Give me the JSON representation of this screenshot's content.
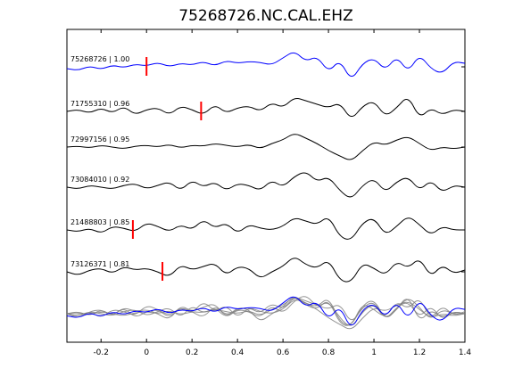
{
  "chart_data": {
    "type": "line",
    "title": "75268726.NC.CAL.EHZ",
    "xlabel": "",
    "ylabel": "",
    "xlim": [
      -0.35,
      1.4
    ],
    "xticks": [
      -0.2,
      0,
      0.2,
      0.4,
      0.6,
      0.8,
      1,
      1.2,
      1.4
    ],
    "xtick_labels": [
      "-0.2",
      "0",
      "0.2",
      "0.4",
      "0.6",
      "0.8",
      "1",
      "1.2",
      "1.4"
    ],
    "grid": false,
    "series": [
      {
        "name": "75268726 | 1.00",
        "color": "#0000ff",
        "pick": 0.0,
        "x": [
          -0.35,
          -0.3,
          -0.25,
          -0.2,
          -0.15,
          -0.1,
          -0.05,
          0.0,
          0.05,
          0.1,
          0.15,
          0.2,
          0.25,
          0.3,
          0.35,
          0.4,
          0.45,
          0.5,
          0.55,
          0.6,
          0.65,
          0.7,
          0.75,
          0.8,
          0.85,
          0.9,
          0.95,
          1.0,
          1.05,
          1.1,
          1.15,
          1.2,
          1.25,
          1.3,
          1.35,
          1.4
        ],
        "y": [
          -0.1,
          -0.2,
          0.05,
          -0.15,
          0.1,
          -0.05,
          0.15,
          0.05,
          0.25,
          0.0,
          0.2,
          0.1,
          0.3,
          0.05,
          0.35,
          0.2,
          0.3,
          0.25,
          0.1,
          0.5,
          0.9,
          0.3,
          0.6,
          -0.3,
          0.4,
          -0.8,
          0.2,
          0.5,
          -0.2,
          0.6,
          -0.3,
          0.7,
          -0.1,
          -0.4,
          0.3,
          0.2
        ]
      },
      {
        "name": "71755310 | 0.96",
        "color": "#000000",
        "pick": 0.24,
        "x": [
          -0.35,
          -0.3,
          -0.25,
          -0.2,
          -0.15,
          -0.1,
          -0.05,
          0.0,
          0.05,
          0.1,
          0.15,
          0.2,
          0.25,
          0.3,
          0.35,
          0.4,
          0.45,
          0.5,
          0.55,
          0.6,
          0.65,
          0.7,
          0.75,
          0.8,
          0.85,
          0.9,
          0.95,
          1.0,
          1.05,
          1.1,
          1.15,
          1.2,
          1.25,
          1.3,
          1.35,
          1.4
        ],
        "y": [
          0.0,
          0.1,
          -0.1,
          0.2,
          -0.1,
          0.3,
          -0.2,
          0.1,
          0.2,
          -0.2,
          0.3,
          0.1,
          -0.2,
          0.4,
          -0.1,
          0.2,
          0.3,
          0.0,
          0.5,
          0.2,
          0.8,
          0.6,
          0.4,
          0.2,
          0.5,
          -0.5,
          0.3,
          0.6,
          -0.3,
          0.2,
          0.9,
          -0.4,
          0.2,
          -0.2,
          0.1,
          0.0
        ]
      },
      {
        "name": "72997156 | 0.95",
        "color": "#000000",
        "pick": null,
        "x": [
          -0.35,
          -0.3,
          -0.25,
          -0.2,
          -0.15,
          -0.1,
          -0.05,
          0.0,
          0.05,
          0.1,
          0.15,
          0.2,
          0.25,
          0.3,
          0.35,
          0.4,
          0.45,
          0.5,
          0.55,
          0.6,
          0.65,
          0.7,
          0.75,
          0.8,
          0.85,
          0.9,
          0.95,
          1.0,
          1.05,
          1.1,
          1.15,
          1.2,
          1.25,
          1.3,
          1.35,
          1.4
        ],
        "y": [
          0.0,
          0.05,
          -0.05,
          0.1,
          0.0,
          -0.1,
          0.05,
          0.1,
          0.0,
          0.15,
          -0.05,
          0.1,
          0.05,
          0.2,
          0.1,
          0.0,
          0.15,
          -0.1,
          0.2,
          0.4,
          0.8,
          0.5,
          0.2,
          -0.2,
          -0.5,
          -0.8,
          -0.2,
          0.3,
          0.1,
          0.4,
          0.6,
          0.2,
          -0.2,
          0.0,
          -0.1,
          0.0
        ]
      },
      {
        "name": "73084010 | 0.92",
        "color": "#000000",
        "pick": null,
        "x": [
          -0.35,
          -0.3,
          -0.25,
          -0.2,
          -0.15,
          -0.1,
          -0.05,
          0.0,
          0.05,
          0.1,
          0.15,
          0.2,
          0.25,
          0.3,
          0.35,
          0.4,
          0.45,
          0.5,
          0.55,
          0.6,
          0.65,
          0.7,
          0.75,
          0.8,
          0.85,
          0.9,
          0.95,
          1.0,
          1.05,
          1.1,
          1.15,
          1.2,
          1.25,
          1.3,
          1.35,
          1.4
        ],
        "y": [
          0.0,
          -0.1,
          0.1,
          0.0,
          -0.1,
          0.1,
          0.2,
          -0.1,
          0.1,
          0.3,
          -0.2,
          0.4,
          0.0,
          0.3,
          -0.2,
          0.2,
          0.1,
          -0.2,
          0.4,
          0.0,
          0.6,
          0.9,
          0.3,
          0.6,
          -0.2,
          -0.7,
          0.1,
          0.5,
          -0.3,
          0.3,
          0.6,
          -0.2,
          0.4,
          -0.3,
          0.1,
          0.0
        ]
      },
      {
        "name": "21488803 | 0.85",
        "color": "#000000",
        "pick": -0.06,
        "x": [
          -0.35,
          -0.3,
          -0.25,
          -0.2,
          -0.15,
          -0.1,
          -0.05,
          0.0,
          0.05,
          0.1,
          0.15,
          0.2,
          0.25,
          0.3,
          0.35,
          0.4,
          0.45,
          0.5,
          0.55,
          0.6,
          0.65,
          0.7,
          0.75,
          0.8,
          0.85,
          0.9,
          0.95,
          1.0,
          1.05,
          1.1,
          1.15,
          1.2,
          1.25,
          1.3,
          1.35,
          1.4
        ],
        "y": [
          0.0,
          -0.1,
          0.1,
          -0.2,
          0.2,
          0.1,
          -0.1,
          0.4,
          0.2,
          -0.1,
          0.3,
          0.0,
          0.6,
          0.1,
          0.4,
          -0.2,
          0.3,
          0.1,
          0.0,
          0.2,
          0.7,
          0.5,
          0.3,
          0.8,
          -0.4,
          -0.6,
          0.4,
          0.7,
          -0.3,
          0.2,
          0.8,
          0.3,
          -0.3,
          0.2,
          0.0,
          0.0
        ]
      },
      {
        "name": "73126371 | 0.81",
        "color": "#000000",
        "pick": 0.07,
        "x": [
          -0.35,
          -0.3,
          -0.25,
          -0.2,
          -0.15,
          -0.1,
          -0.05,
          0.0,
          0.05,
          0.1,
          0.15,
          0.2,
          0.25,
          0.3,
          0.35,
          0.4,
          0.45,
          0.5,
          0.55,
          0.6,
          0.65,
          0.7,
          0.75,
          0.8,
          0.85,
          0.9,
          0.95,
          1.0,
          1.05,
          1.1,
          1.15,
          1.2,
          1.25,
          1.3,
          1.35,
          1.4
        ],
        "y": [
          0.0,
          -0.2,
          0.1,
          0.2,
          -0.1,
          0.3,
          0.1,
          0.2,
          0.0,
          -0.3,
          0.4,
          0.1,
          0.3,
          0.5,
          -0.2,
          0.3,
          0.2,
          -0.4,
          0.0,
          0.3,
          0.9,
          0.4,
          0.2,
          0.7,
          -0.5,
          -0.6,
          0.5,
          0.2,
          -0.2,
          0.6,
          0.2,
          0.8,
          -0.3,
          0.4,
          -0.1,
          0.1
        ]
      }
    ],
    "stack_series": [
      {
        "name": "",
        "color": "#0000ff",
        "y": [
          -0.1,
          -0.2,
          0.05,
          -0.15,
          0.1,
          -0.05,
          0.15,
          0.05,
          0.25,
          0.0,
          0.2,
          0.1,
          0.3,
          0.05,
          0.35,
          0.2,
          0.3,
          0.25,
          0.1,
          0.5,
          0.9,
          0.3,
          0.6,
          -0.3,
          0.4,
          -0.8,
          0.2,
          0.5,
          -0.2,
          0.6,
          -0.3,
          0.7,
          -0.1,
          -0.4,
          0.3,
          0.2
        ]
      },
      {
        "name": "",
        "color": "#808080",
        "y": [
          0.0,
          0.1,
          -0.1,
          0.2,
          -0.1,
          0.3,
          -0.2,
          0.1,
          0.2,
          -0.2,
          0.3,
          0.1,
          -0.2,
          0.4,
          -0.1,
          0.2,
          0.3,
          0.0,
          0.5,
          0.2,
          0.8,
          0.6,
          0.4,
          0.2,
          0.5,
          -0.5,
          0.3,
          0.6,
          -0.3,
          0.2,
          0.9,
          -0.4,
          0.2,
          -0.2,
          0.1,
          0.0
        ]
      },
      {
        "name": "",
        "color": "#808080",
        "y": [
          0.0,
          0.05,
          -0.05,
          0.1,
          0.0,
          -0.1,
          0.05,
          0.1,
          0.0,
          0.15,
          -0.05,
          0.1,
          0.05,
          0.2,
          0.1,
          0.0,
          0.15,
          -0.1,
          0.2,
          0.4,
          0.8,
          0.5,
          0.2,
          -0.2,
          -0.5,
          -0.8,
          -0.2,
          0.3,
          0.1,
          0.4,
          0.6,
          0.2,
          -0.2,
          0.0,
          -0.1,
          0.0
        ]
      },
      {
        "name": "",
        "color": "#808080",
        "y": [
          0.0,
          -0.1,
          0.1,
          0.0,
          -0.1,
          0.1,
          0.2,
          -0.1,
          0.1,
          0.3,
          -0.2,
          0.4,
          0.0,
          0.3,
          -0.2,
          0.2,
          0.1,
          -0.2,
          0.4,
          0.0,
          0.6,
          0.9,
          0.3,
          0.6,
          -0.2,
          -0.7,
          0.1,
          0.5,
          -0.3,
          0.3,
          0.6,
          -0.2,
          0.4,
          -0.3,
          0.1,
          0.0
        ]
      },
      {
        "name": "",
        "color": "#808080",
        "y": [
          0.0,
          -0.1,
          0.1,
          -0.2,
          0.2,
          0.1,
          -0.1,
          0.4,
          0.2,
          -0.1,
          0.3,
          0.0,
          0.6,
          0.1,
          0.4,
          -0.2,
          0.3,
          0.1,
          0.0,
          0.2,
          0.7,
          0.5,
          0.3,
          0.8,
          -0.4,
          -0.6,
          0.4,
          0.7,
          -0.3,
          0.2,
          0.8,
          0.3,
          -0.3,
          0.2,
          0.0,
          0.0
        ]
      },
      {
        "name": "",
        "color": "#808080",
        "y": [
          0.0,
          -0.2,
          0.1,
          0.2,
          -0.1,
          0.3,
          0.1,
          0.2,
          0.0,
          -0.3,
          0.4,
          0.1,
          0.3,
          0.5,
          -0.2,
          0.3,
          0.2,
          -0.4,
          0.0,
          0.3,
          0.9,
          0.4,
          0.2,
          0.7,
          -0.5,
          -0.6,
          0.5,
          0.2,
          -0.2,
          0.6,
          0.2,
          0.8,
          -0.3,
          0.4,
          -0.1,
          0.1
        ]
      }
    ],
    "colors": {
      "reference": "#0000ff",
      "trace": "#000000",
      "overlay": "#808080",
      "pick": "#ff0000"
    }
  }
}
